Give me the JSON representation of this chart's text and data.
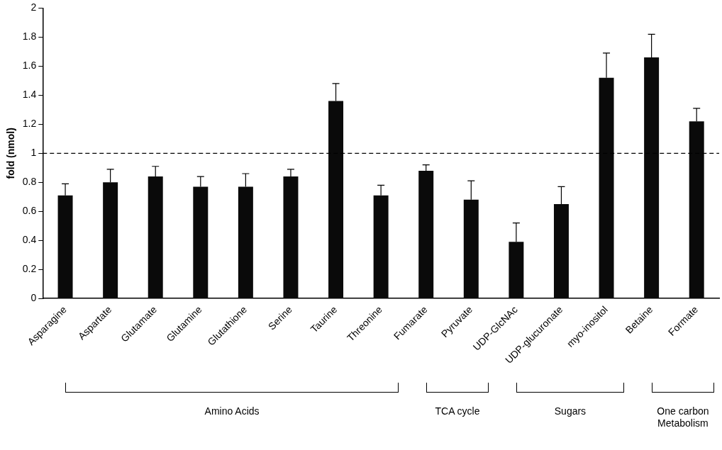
{
  "chart_data": {
    "type": "bar",
    "ylabel": "fold (nmol)",
    "categories": [
      "Asparagine",
      "Aspartate",
      "Glutamate",
      "Glutamine",
      "Glutathione",
      "Serine",
      "Taurine",
      "Threonine",
      "Fumarate",
      "Pyruvate",
      "UDP-GlcNAc",
      "UDP-glucuronate",
      "myo-inositol",
      "Betaine",
      "Formate"
    ],
    "values": [
      0.71,
      0.8,
      0.84,
      0.77,
      0.77,
      0.84,
      1.36,
      0.71,
      0.88,
      0.68,
      0.39,
      0.65,
      1.52,
      1.66,
      1.22
    ],
    "errors": [
      [
        0.71,
        0.79
      ],
      [
        0.8,
        0.89
      ],
      [
        0.84,
        0.91
      ],
      [
        0.77,
        0.84
      ],
      [
        0.77,
        0.86
      ],
      [
        0.84,
        0.89
      ],
      [
        1.36,
        1.48
      ],
      [
        0.71,
        0.78
      ],
      [
        0.88,
        0.92
      ],
      [
        0.68,
        0.81
      ],
      [
        0.39,
        0.52
      ],
      [
        0.65,
        0.77
      ],
      [
        1.52,
        1.69
      ],
      [
        1.66,
        1.82
      ],
      [
        1.22,
        1.31
      ]
    ],
    "color": "#0a0a0a",
    "ylim": [
      0,
      2
    ],
    "yticks": [
      0,
      0.2,
      0.4,
      0.6,
      0.8,
      1,
      1.2,
      1.4,
      1.6,
      1.8,
      2
    ],
    "grid": false,
    "legend": false,
    "ref_lines": [
      {
        "axis": "y",
        "value": 1,
        "line_style": "dashed",
        "color": "#000000"
      }
    ],
    "annotations": [
      "Amino Acids",
      "TCA cycle",
      "Sugars",
      "One carbon Metabolism"
    ]
  }
}
